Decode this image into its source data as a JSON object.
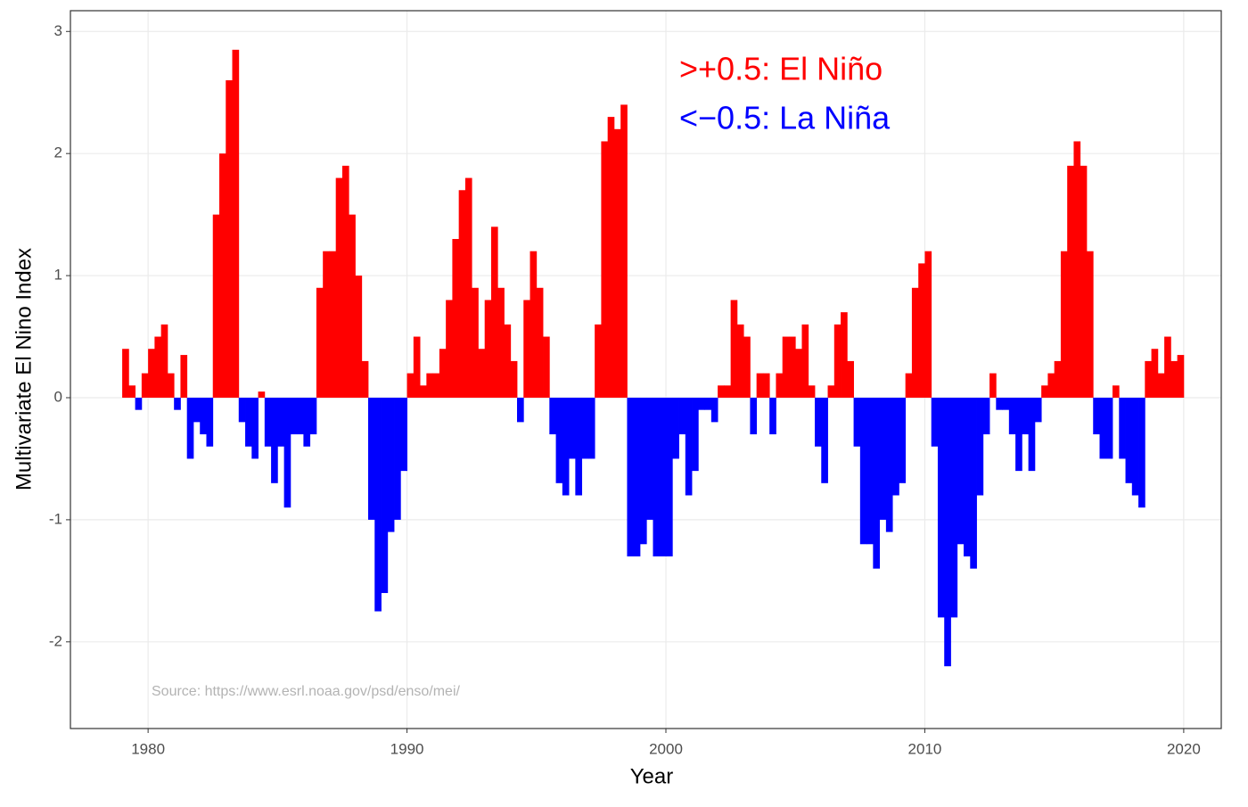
{
  "chart_data": {
    "type": "signed-bar",
    "xlabel": "Year",
    "ylabel": "Multivariate El Nino Index",
    "annotations": [
      {
        "text": ">+0.5: El Niño",
        "color": "#ff0000"
      },
      {
        "text": "<−0.5: La Niña",
        "color": "#0000ff"
      },
      {
        "text": "Source: https://www.esrl.noaa.gov/psd/enso/mei/",
        "color": "#b3b3b3"
      }
    ],
    "positive_color": "#ff0000",
    "negative_color": "#0000ff",
    "bar_width": 0.25,
    "xlim": [
      1977.0,
      2021.45
    ],
    "ylim": [
      -2.71,
      3.17
    ],
    "xticks": [
      1980,
      1990,
      2000,
      2010,
      2020
    ],
    "yticks": [
      -2,
      -1,
      0,
      1,
      2,
      3
    ],
    "grid": true,
    "x": [
      1979,
      1979.25,
      1979.5,
      1979.75,
      1980,
      1980.25,
      1980.5,
      1980.75,
      1981,
      1981.25,
      1981.5,
      1981.75,
      1982,
      1982.25,
      1982.5,
      1982.75,
      1983,
      1983.25,
      1983.5,
      1983.75,
      1984,
      1984.25,
      1984.5,
      1984.75,
      1985,
      1985.25,
      1985.5,
      1985.75,
      1986,
      1986.25,
      1986.5,
      1986.75,
      1987,
      1987.25,
      1987.5,
      1987.75,
      1988,
      1988.25,
      1988.5,
      1988.75,
      1989,
      1989.25,
      1989.5,
      1989.75,
      1990,
      1990.25,
      1990.5,
      1990.75,
      1991,
      1991.25,
      1991.5,
      1991.75,
      1992,
      1992.25,
      1992.5,
      1992.75,
      1993,
      1993.25,
      1993.5,
      1993.75,
      1994,
      1994.25,
      1994.5,
      1994.75,
      1995,
      1995.25,
      1995.5,
      1995.75,
      1996,
      1996.25,
      1996.5,
      1996.75,
      1997,
      1997.25,
      1997.5,
      1997.75,
      1998,
      1998.25,
      1998.5,
      1998.75,
      1999,
      1999.25,
      1999.5,
      1999.75,
      2000,
      2000.25,
      2000.5,
      2000.75,
      2001,
      2001.25,
      2001.5,
      2001.75,
      2002,
      2002.25,
      2002.5,
      2002.75,
      2003,
      2003.25,
      2003.5,
      2003.75,
      2004,
      2004.25,
      2004.5,
      2004.75,
      2005,
      2005.25,
      2005.5,
      2005.75,
      2006,
      2006.25,
      2006.5,
      2006.75,
      2007,
      2007.25,
      2007.5,
      2007.75,
      2008,
      2008.25,
      2008.5,
      2008.75,
      2009,
      2009.25,
      2009.5,
      2009.75,
      2010,
      2010.25,
      2010.5,
      2010.75,
      2011,
      2011.25,
      2011.5,
      2011.75,
      2012,
      2012.25,
      2012.5,
      2012.75,
      2013,
      2013.25,
      2013.5,
      2013.75,
      2014,
      2014.25,
      2014.5,
      2014.75,
      2015,
      2015.25,
      2015.5,
      2015.75,
      2016,
      2016.25,
      2016.5,
      2016.75,
      2017,
      2017.25,
      2017.5,
      2017.75,
      2018,
      2018.25,
      2018.5,
      2018.75,
      2019,
      2019.25,
      2019.5,
      2019.75
    ],
    "values": [
      0.4,
      0.1,
      -0.1,
      0.2,
      0.4,
      0.5,
      0.6,
      0.2,
      -0.1,
      0.35,
      -0.5,
      -0.2,
      -0.3,
      -0.4,
      1.5,
      2.0,
      2.6,
      2.85,
      -0.2,
      -0.4,
      -0.5,
      0.05,
      -0.4,
      -0.7,
      -0.4,
      -0.9,
      -0.3,
      -0.3,
      -0.4,
      -0.3,
      0.9,
      1.2,
      1.2,
      1.8,
      1.9,
      1.5,
      1.0,
      0.3,
      -1.0,
      -1.75,
      -1.6,
      -1.1,
      -1.0,
      -0.6,
      0.2,
      0.5,
      0.1,
      0.2,
      0.2,
      0.4,
      0.8,
      1.3,
      1.7,
      1.8,
      0.9,
      0.4,
      0.8,
      1.4,
      0.9,
      0.6,
      0.3,
      -0.2,
      0.8,
      1.2,
      0.9,
      0.5,
      -0.3,
      -0.7,
      -0.8,
      -0.5,
      -0.8,
      -0.5,
      -0.5,
      0.6,
      2.1,
      2.3,
      2.2,
      2.4,
      -1.3,
      -1.3,
      -1.2,
      -1.0,
      -1.3,
      -1.3,
      -1.3,
      -0.5,
      -0.3,
      -0.8,
      -0.6,
      -0.1,
      -0.1,
      -0.2,
      0.1,
      0.1,
      0.8,
      0.6,
      0.5,
      -0.3,
      0.2,
      0.2,
      -0.3,
      0.2,
      0.5,
      0.5,
      0.4,
      0.6,
      0.1,
      -0.4,
      -0.7,
      0.1,
      0.6,
      0.7,
      0.3,
      -0.4,
      -1.2,
      -1.2,
      -1.4,
      -1.0,
      -1.1,
      -0.8,
      -0.7,
      0.2,
      0.9,
      1.1,
      1.2,
      -0.4,
      -1.8,
      -2.2,
      -1.8,
      -1.2,
      -1.3,
      -1.4,
      -0.8,
      -0.3,
      0.2,
      -0.1,
      -0.1,
      -0.3,
      -0.6,
      -0.3,
      -0.6,
      -0.2,
      0.1,
      0.2,
      0.3,
      1.2,
      1.9,
      2.1,
      1.9,
      1.2,
      -0.3,
      -0.5,
      -0.5,
      0.1,
      -0.5,
      -0.7,
      -0.8,
      -0.9,
      0.3,
      0.4,
      0.2,
      0.5,
      0.3,
      0.35
    ]
  }
}
